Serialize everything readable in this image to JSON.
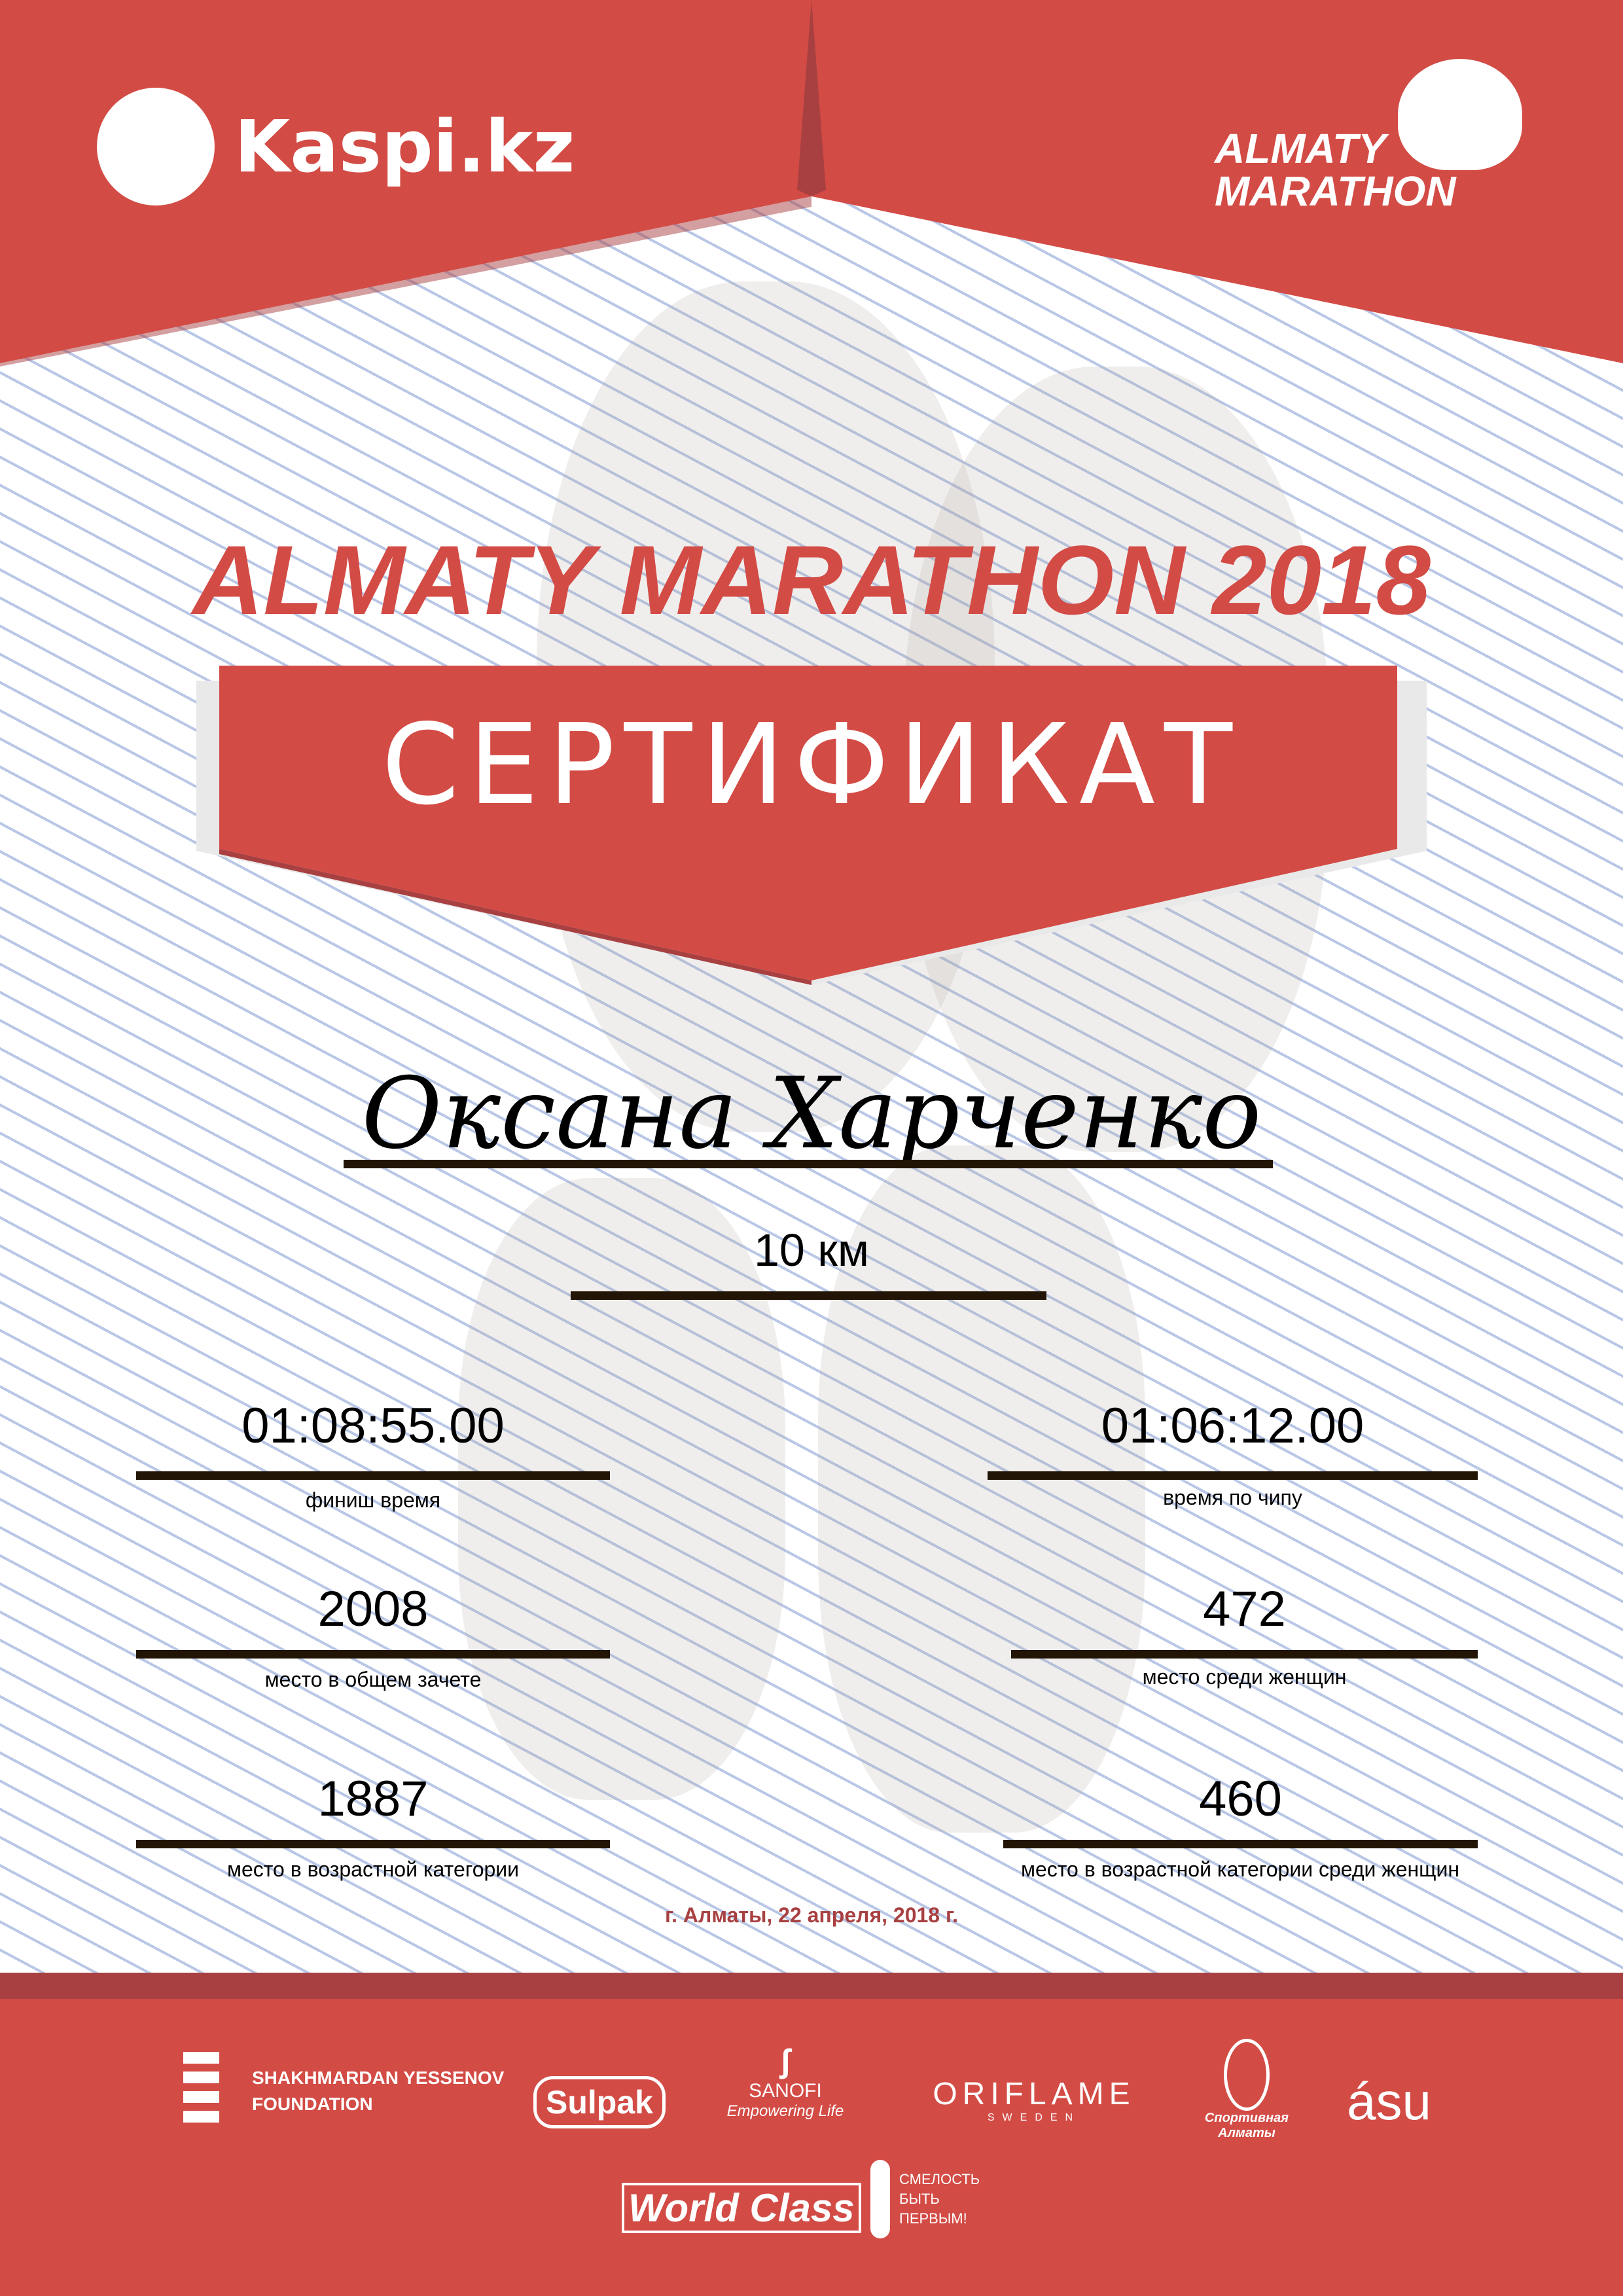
{
  "colors": {
    "brand_red": "#d34b45",
    "dark_red": "#a84041",
    "text": "#000000"
  },
  "header": {
    "sponsor_logo": "Kaspi.kz",
    "event_logo_line1": "ALMATY",
    "event_logo_line2": "MARATHON"
  },
  "title": "ALMATY MARATHON 2018",
  "banner": "СЕРТИФИКАТ",
  "participant": {
    "name": "Оксана Харченко",
    "distance": "10 км"
  },
  "stats": [
    {
      "value": "01:08:55.00",
      "label": "финиш время"
    },
    {
      "value": "01:06:12.00",
      "label": "время по чипу"
    },
    {
      "value": "2008",
      "label": "место в общем зачете"
    },
    {
      "value": "472",
      "label": "место среди женщин"
    },
    {
      "value": "1887",
      "label": "место в возрастной категории"
    },
    {
      "value": "460",
      "label": "место в возрастной категории среди женщин"
    }
  ],
  "date": "г. Алматы, 22 апреля, 2018 г.",
  "footer": {
    "logos": [
      {
        "name": "SHAKHMARDAN YESSENOV",
        "sub": "FOUNDATION"
      },
      {
        "name": "Sulpak"
      },
      {
        "name": "SANOFI",
        "sub": "Empowering Life"
      },
      {
        "name": "ORIFLAME",
        "sub": "SWEDEN"
      },
      {
        "name": "Спортивная Алматы"
      },
      {
        "name": "ásu"
      },
      {
        "name": "World Class"
      },
      {
        "name": "СМЕЛОСТЬ БЫТЬ ПЕРВЫМ!"
      }
    ]
  }
}
